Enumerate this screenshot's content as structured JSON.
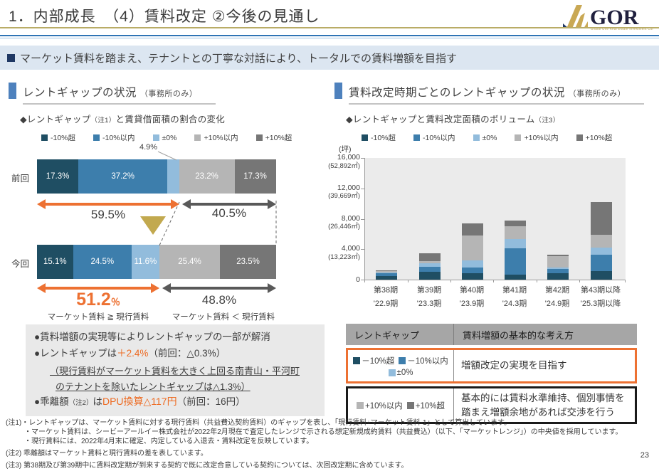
{
  "page": {
    "title": "1．内部成長　（4）賃料改定 ②今後の見通し",
    "page_number": "23",
    "headline": "マーケット賃料を踏まえ、テナントとの丁寧な対話により、トータルでの賃料増額を目指す"
  },
  "logo": {
    "text": "GOR",
    "tagline": "Global One Real Estate Investment Corp."
  },
  "colors": {
    "accent_orange": "#ED7132",
    "arrow_gray": "#595959",
    "navy_bullet": "#1F3864",
    "section_blue": "#4E81BD",
    "gold_triangle": "#C2A94F"
  },
  "legend": {
    "items": [
      {
        "label": "-10%超",
        "color": "#1F4E63"
      },
      {
        "label": "-10%以内",
        "color": "#3D7EAC"
      },
      {
        "label": "±0%",
        "color": "#92BCDC"
      },
      {
        "label": "+10%以内",
        "color": "#B5B5B5"
      },
      {
        "label": "+10%超",
        "color": "#767676"
      }
    ]
  },
  "left_section": {
    "header": "レントギャップの状況",
    "header_suffix": "（事務所のみ）",
    "subtitle_pre": "◆レントギャップ",
    "subtitle_note": "（注1）",
    "subtitle_post": "と賃貸借面積の割合の変化",
    "callout": "4.9%",
    "rows": [
      {
        "label": "前回",
        "values": [
          17.3,
          37.2,
          4.9,
          23.2,
          17.3
        ],
        "display": [
          "17.3%",
          "37.2%",
          "",
          "23.2%",
          "17.3%"
        ]
      },
      {
        "label": "今回",
        "values": [
          15.1,
          24.5,
          11.6,
          25.4,
          23.5
        ],
        "display": [
          "15.1%",
          "24.5%",
          "11.6%",
          "25.4%",
          "23.5%"
        ]
      }
    ],
    "prev_left_pct": "59.5%",
    "prev_right_pct": "40.5%",
    "now_left_big": "51.2",
    "now_left_unit": "％",
    "now_right_pct": "48.8%",
    "now_left_caption": "マーケット賃料 ≧ 現行賃料",
    "now_right_caption": "マーケット賃料 ＜ 現行賃料",
    "notes": {
      "bullet1": "●賃料増額の実現等によりレントギャップの一部が解消",
      "bullet2_pre": "●レントギャップは",
      "bullet2_highlight": "＋2.4%",
      "bullet2_post": "（前回：△0.3%）",
      "bullet2_sub1": "（現行賃料がマーケット賃料を大きく上回る南青山・平河町",
      "bullet2_sub2": "のテナントを除いたレントギャップは△1.3%）",
      "bullet3_pre": "●乖離額",
      "bullet3_note": "（注2）",
      "bullet3_mid": "は",
      "bullet3_highlight": "DPU換算△117円",
      "bullet3_post": "（前回：16円）"
    }
  },
  "right_section": {
    "header": "賃料改定時期ごとのレントギャップの状況",
    "header_suffix": "（事務所のみ）",
    "subtitle_pre": "◆レントギャップと賃料改定面積のボリューム",
    "subtitle_note": "（注3）",
    "unit": "(坪)",
    "table": {
      "headers": [
        "レントギャップ",
        "賃料増額の基本的な考え方"
      ],
      "rows": [
        {
          "legend_line1": [
            {
              "label": "－10%超",
              "color": "#1F4E63"
            },
            {
              "label": "－10%以内",
              "color": "#3D7EAC"
            }
          ],
          "legend_line2": [
            {
              "label": "±0%",
              "color": "#92BCDC"
            }
          ],
          "policy": "増額改定の実現を目指す",
          "border": "#ED7132"
        },
        {
          "legend_line1": [
            {
              "label": "+10%以内",
              "color": "#B5B5B5"
            },
            {
              "label": "+10%超",
              "color": "#767676"
            }
          ],
          "legend_line2": [],
          "policy": "基本的には賃料水準維持、個別事情を踏まえ増額余地があれば交渉を行う",
          "border": "#1A1A1A"
        }
      ]
    }
  },
  "chart_data": [
    {
      "type": "bar",
      "stacked": true,
      "orientation": "horizontal",
      "title": "レントギャップ（注1）と賃貸借面積の割合の変化",
      "categories": [
        "前回",
        "今回"
      ],
      "series": [
        {
          "name": "-10%超",
          "values": [
            17.3,
            15.1
          ]
        },
        {
          "name": "-10%以内",
          "values": [
            37.2,
            24.5
          ]
        },
        {
          "name": "±0%",
          "values": [
            4.9,
            11.6
          ]
        },
        {
          "name": "+10%以内",
          "values": [
            23.2,
            25.4
          ]
        },
        {
          "name": "+10%超",
          "values": [
            17.3,
            23.5
          ]
        }
      ],
      "annotations": {
        "prev_market_ge_current": "59.5%",
        "prev_market_lt_current": "40.5%",
        "now_market_ge_current": "51.2%",
        "now_market_lt_current": "48.8%"
      },
      "unit": "%"
    },
    {
      "type": "bar",
      "stacked": true,
      "orientation": "vertical",
      "title": "レントギャップと賃料改定面積のボリューム（注3）",
      "unit": "坪",
      "categories": [
        "第38期",
        "第39期",
        "第40期",
        "第41期",
        "第42期",
        "第43期以降"
      ],
      "category_sublabels": [
        "'22.9期",
        "'23.3期",
        "'23.9期",
        "'24.3期",
        "'24.9期",
        "'25.3期以降"
      ],
      "series": [
        {
          "name": "-10%超",
          "values": [
            450,
            1000,
            800,
            700,
            850,
            1100
          ]
        },
        {
          "name": "-10%以内",
          "values": [
            350,
            650,
            750,
            3450,
            600,
            2200
          ]
        },
        {
          "name": "±0%",
          "values": [
            100,
            550,
            1000,
            1150,
            150,
            900
          ]
        },
        {
          "name": "+10%以内",
          "values": [
            250,
            200,
            3250,
            1700,
            1450,
            1700
          ]
        },
        {
          "name": "+10%超",
          "values": [
            50,
            1050,
            1600,
            800,
            250,
            4300
          ]
        }
      ],
      "ylim": [
        0,
        16000
      ],
      "yticks": [
        {
          "value": 16000,
          "label": "16,000",
          "sublabel": "(52,892㎡)"
        },
        {
          "value": 12000,
          "label": "12,000",
          "sublabel": "(39,669㎡)"
        },
        {
          "value": 8000,
          "label": "8,000",
          "sublabel": "(26,446㎡)"
        },
        {
          "value": 4000,
          "label": "4,000",
          "sublabel": "(13,223㎡)"
        },
        {
          "value": 0,
          "label": "0",
          "sublabel": ""
        }
      ],
      "grid": false,
      "legend_position": "top"
    }
  ],
  "footnotes": [
    "(注1)・レントギャップは、マーケット賃料に対する現行賃料（共益費込契約賃料）のギャップを表し、「現行賃料÷マーケット賃料-1」として算出しています。",
    "・マーケット賃料は、シービーアールイー株式会社が2022年2月現在で査定したレンジで示される想定新規成約賃料（共益費込）（以下、「マーケットレンジ」）の中央値を採用しています。",
    "・現行賃料には、2022年4月末に確定、内定している入退去・賃料改定を反映しています。",
    "(注2) 乖離額はマーケット賃料と現行賃料の差を表しています。",
    "(注3) 第38期及び第39期中に賃料改定期が到来する契約で既に改定合意している契約については、次回改定期に含めています。"
  ]
}
